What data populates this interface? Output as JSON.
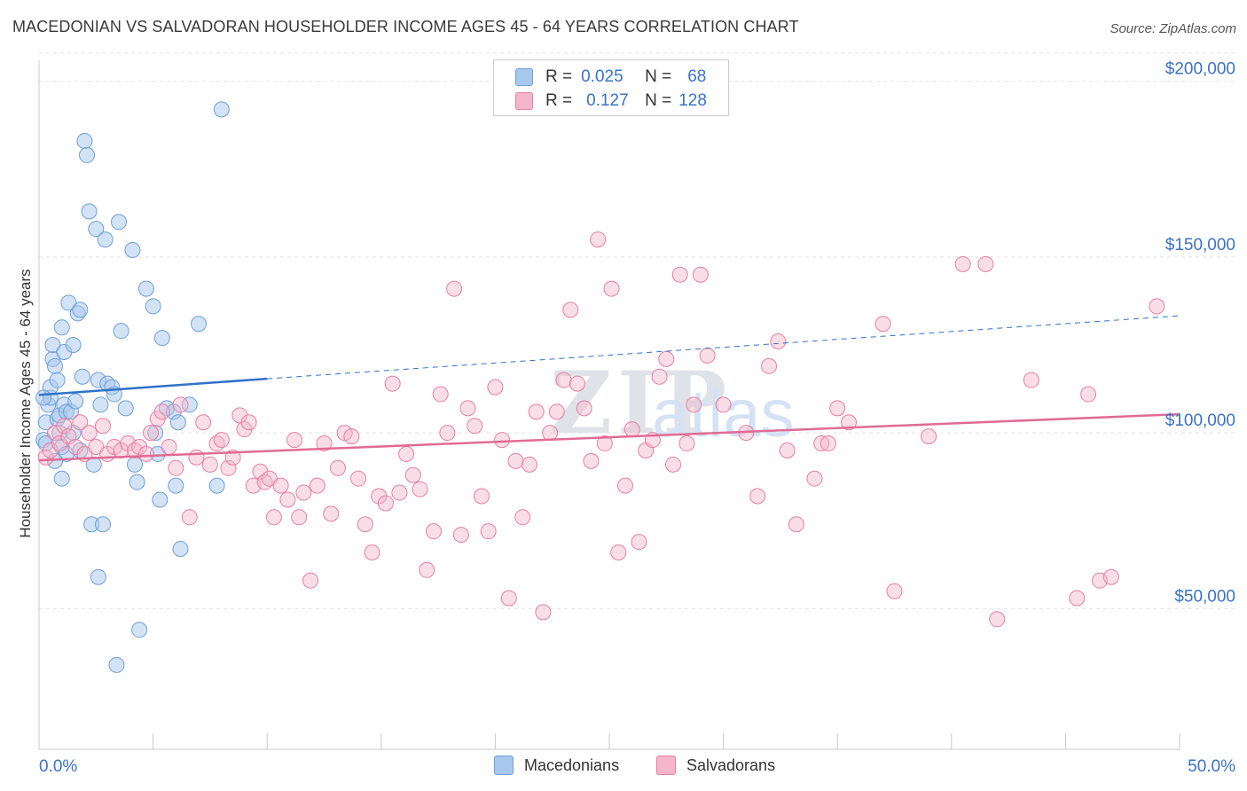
{
  "header": {
    "title": "MACEDONIAN VS SALVADORAN HOUSEHOLDER INCOME AGES 45 - 64 YEARS CORRELATION CHART",
    "source": "Source: ZipAtlas.com"
  },
  "legend": {
    "r_label": "R =",
    "n_label": "N =",
    "rows": [
      {
        "r": "0.025",
        "n": "68",
        "color": "#a8c8ee"
      },
      {
        "r": "0.127",
        "n": "128",
        "color": "#f5b5ca"
      }
    ]
  },
  "watermark": {
    "zip": "ZIP",
    "atlas": "atlas"
  },
  "colors": {
    "blue_fill": "#a8c8ee",
    "blue_stroke": "#6f9fd8",
    "blue_line": "#2f72c9",
    "pink_fill": "#f5b5ca",
    "pink_stroke": "#e77fa4",
    "pink_line": "#e06b94",
    "tick_label": "#3b72c7",
    "grid": "#e2e2e2"
  },
  "chart_data": {
    "type": "scatter",
    "title": "MACEDONIAN VS SALVADORAN HOUSEHOLDER INCOME AGES 45 - 64 YEARS CORRELATION CHART",
    "xlabel": "",
    "ylabel": "Householder Income Ages 45 - 64 years",
    "xlim": [
      0,
      50
    ],
    "ylim": [
      10000,
      210000
    ],
    "x_tick_labels": [
      "0.0%",
      "50.0%"
    ],
    "y_ticks": [
      50000,
      100000,
      150000,
      200000
    ],
    "y_tick_labels": [
      "$50,000",
      "$100,000",
      "$150,000",
      "$200,000"
    ],
    "grid": true,
    "legend_position": "bottom",
    "series": [
      {
        "name": "Macedonians",
        "r": 0.025,
        "n": 68,
        "trend": {
          "x0": 0,
          "y0": 110800,
          "x_solid_end": 10,
          "y_solid_end": 115400,
          "x1": 50,
          "y1": 133300
        },
        "points": [
          [
            0.2,
            98000
          ],
          [
            0.3,
            97000
          ],
          [
            0.3,
            103000
          ],
          [
            0.4,
            108000
          ],
          [
            0.5,
            110000
          ],
          [
            0.5,
            113000
          ],
          [
            0.6,
            121000
          ],
          [
            0.6,
            125000
          ],
          [
            0.7,
            119000
          ],
          [
            0.8,
            115000
          ],
          [
            0.8,
            104000
          ],
          [
            0.9,
            105000
          ],
          [
            0.9,
            100000
          ],
          [
            1.0,
            96000
          ],
          [
            1.0,
            130000
          ],
          [
            1.1,
            123000
          ],
          [
            1.1,
            108000
          ],
          [
            1.2,
            94000
          ],
          [
            1.2,
            106000
          ],
          [
            1.3,
            137000
          ],
          [
            1.4,
            106000
          ],
          [
            1.5,
            125000
          ],
          [
            1.5,
            100000
          ],
          [
            1.6,
            109000
          ],
          [
            1.7,
            134000
          ],
          [
            1.8,
            135000
          ],
          [
            1.8,
            95000
          ],
          [
            1.9,
            116000
          ],
          [
            2.0,
            183000
          ],
          [
            2.1,
            179000
          ],
          [
            2.2,
            163000
          ],
          [
            2.3,
            74000
          ],
          [
            2.4,
            91000
          ],
          [
            2.5,
            158000
          ],
          [
            2.6,
            59000
          ],
          [
            2.6,
            115000
          ],
          [
            2.7,
            108000
          ],
          [
            2.8,
            74000
          ],
          [
            2.9,
            155000
          ],
          [
            3.0,
            114000
          ],
          [
            3.2,
            113000
          ],
          [
            3.3,
            111000
          ],
          [
            3.4,
            34000
          ],
          [
            3.5,
            160000
          ],
          [
            3.6,
            129000
          ],
          [
            3.8,
            107000
          ],
          [
            4.1,
            152000
          ],
          [
            4.2,
            91000
          ],
          [
            4.3,
            86000
          ],
          [
            4.4,
            44000
          ],
          [
            4.7,
            141000
          ],
          [
            5.0,
            136000
          ],
          [
            5.1,
            100000
          ],
          [
            5.2,
            94000
          ],
          [
            5.3,
            81000
          ],
          [
            5.4,
            127000
          ],
          [
            5.6,
            107000
          ],
          [
            5.9,
            106000
          ],
          [
            6.0,
            85000
          ],
          [
            6.1,
            103000
          ],
          [
            6.2,
            67000
          ],
          [
            6.6,
            108000
          ],
          [
            7.0,
            131000
          ],
          [
            7.8,
            85000
          ],
          [
            8.0,
            192000
          ],
          [
            0.7,
            92000
          ],
          [
            1.0,
            87000
          ],
          [
            0.2,
            110000
          ]
        ]
      },
      {
        "name": "Salvadorans",
        "r": 0.127,
        "n": 128,
        "trend": {
          "x0": 0,
          "y0": 92200,
          "x1": 50,
          "y1": 105300
        },
        "points": [
          [
            0.3,
            93000
          ],
          [
            0.5,
            95000
          ],
          [
            0.7,
            100000
          ],
          [
            0.9,
            97000
          ],
          [
            1.1,
            102000
          ],
          [
            1.3,
            99000
          ],
          [
            1.6,
            96000
          ],
          [
            1.8,
            103000
          ],
          [
            2.0,
            94000
          ],
          [
            2.2,
            100000
          ],
          [
            2.5,
            96000
          ],
          [
            2.8,
            102000
          ],
          [
            3.0,
            94000
          ],
          [
            3.3,
            96000
          ],
          [
            3.6,
            95000
          ],
          [
            3.9,
            97000
          ],
          [
            4.2,
            95000
          ],
          [
            4.4,
            96000
          ],
          [
            4.7,
            94000
          ],
          [
            4.9,
            100000
          ],
          [
            5.2,
            104000
          ],
          [
            5.4,
            106000
          ],
          [
            5.7,
            96000
          ],
          [
            6.0,
            90000
          ],
          [
            6.2,
            108000
          ],
          [
            6.6,
            76000
          ],
          [
            6.9,
            93000
          ],
          [
            7.2,
            103000
          ],
          [
            7.5,
            91000
          ],
          [
            7.8,
            97000
          ],
          [
            8.0,
            98000
          ],
          [
            8.3,
            90000
          ],
          [
            8.5,
            93000
          ],
          [
            8.8,
            105000
          ],
          [
            9.0,
            101000
          ],
          [
            9.2,
            103000
          ],
          [
            9.4,
            85000
          ],
          [
            9.7,
            89000
          ],
          [
            9.9,
            86000
          ],
          [
            10.1,
            87000
          ],
          [
            10.3,
            76000
          ],
          [
            10.6,
            85000
          ],
          [
            10.9,
            81000
          ],
          [
            11.2,
            98000
          ],
          [
            11.4,
            76000
          ],
          [
            11.6,
            83000
          ],
          [
            11.9,
            58000
          ],
          [
            12.2,
            85000
          ],
          [
            12.5,
            97000
          ],
          [
            12.8,
            77000
          ],
          [
            13.1,
            90000
          ],
          [
            13.4,
            100000
          ],
          [
            13.7,
            99000
          ],
          [
            14.0,
            87000
          ],
          [
            14.3,
            74000
          ],
          [
            14.6,
            66000
          ],
          [
            14.9,
            82000
          ],
          [
            15.2,
            80000
          ],
          [
            15.5,
            114000
          ],
          [
            15.8,
            83000
          ],
          [
            16.1,
            94000
          ],
          [
            16.4,
            88000
          ],
          [
            16.7,
            84000
          ],
          [
            17.0,
            61000
          ],
          [
            17.3,
            72000
          ],
          [
            17.6,
            111000
          ],
          [
            17.9,
            100000
          ],
          [
            18.2,
            141000
          ],
          [
            18.5,
            71000
          ],
          [
            18.8,
            107000
          ],
          [
            19.1,
            102000
          ],
          [
            19.4,
            82000
          ],
          [
            19.7,
            72000
          ],
          [
            20.0,
            113000
          ],
          [
            20.3,
            98000
          ],
          [
            20.6,
            53000
          ],
          [
            20.9,
            92000
          ],
          [
            21.2,
            76000
          ],
          [
            21.5,
            91000
          ],
          [
            21.8,
            106000
          ],
          [
            22.1,
            49000
          ],
          [
            22.4,
            100000
          ],
          [
            22.7,
            106000
          ],
          [
            23.0,
            115000
          ],
          [
            23.3,
            135000
          ],
          [
            23.6,
            114000
          ],
          [
            23.9,
            107000
          ],
          [
            24.2,
            92000
          ],
          [
            24.5,
            155000
          ],
          [
            24.8,
            97000
          ],
          [
            25.1,
            141000
          ],
          [
            25.4,
            66000
          ],
          [
            25.7,
            85000
          ],
          [
            26.0,
            101000
          ],
          [
            26.3,
            69000
          ],
          [
            26.6,
            95000
          ],
          [
            26.9,
            98000
          ],
          [
            27.2,
            116000
          ],
          [
            27.5,
            121000
          ],
          [
            27.8,
            91000
          ],
          [
            28.1,
            145000
          ],
          [
            28.4,
            97000
          ],
          [
            28.7,
            108000
          ],
          [
            29.0,
            145000
          ],
          [
            29.3,
            122000
          ],
          [
            30.0,
            108000
          ],
          [
            31.0,
            100000
          ],
          [
            31.5,
            82000
          ],
          [
            32.0,
            119000
          ],
          [
            32.4,
            126000
          ],
          [
            32.8,
            95000
          ],
          [
            33.2,
            74000
          ],
          [
            34.0,
            87000
          ],
          [
            34.3,
            97000
          ],
          [
            34.6,
            97000
          ],
          [
            35.0,
            107000
          ],
          [
            35.5,
            103000
          ],
          [
            37.0,
            131000
          ],
          [
            37.5,
            55000
          ],
          [
            39.0,
            99000
          ],
          [
            40.5,
            148000
          ],
          [
            41.5,
            148000
          ],
          [
            42.0,
            47000
          ],
          [
            43.5,
            115000
          ],
          [
            45.5,
            53000
          ],
          [
            46.0,
            111000
          ],
          [
            46.5,
            58000
          ],
          [
            47.0,
            59000
          ],
          [
            49.0,
            136000
          ]
        ]
      }
    ]
  },
  "bottom_legend": {
    "items": [
      "Macedonians",
      "Salvadorans"
    ]
  }
}
